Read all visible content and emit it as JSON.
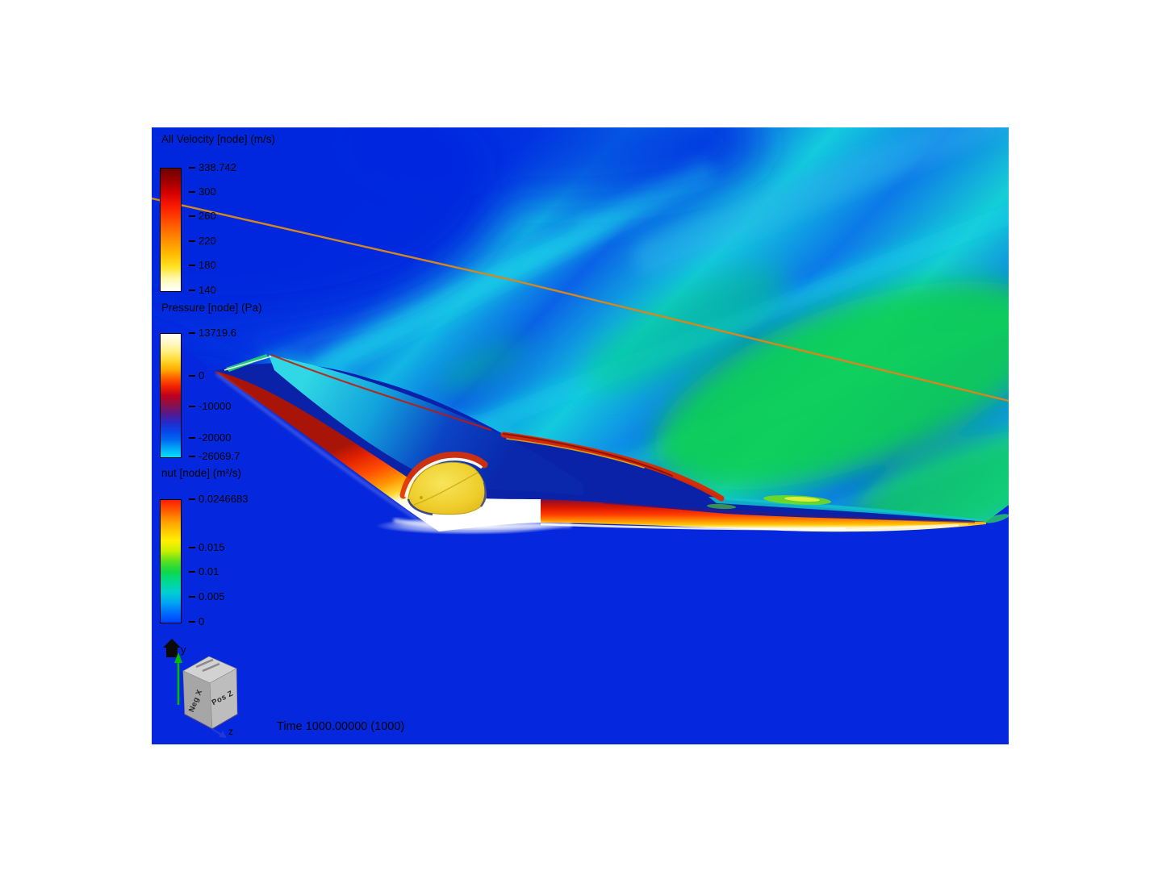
{
  "window": {
    "background": "#FFFFFF"
  },
  "viewport": {
    "background_color": "#0527DD",
    "time_label": "Time 1000.00000 (1000)",
    "colors": {
      "deep_blue": "#0527DD",
      "wake_cyan": "#14CCE0",
      "wake_green": "#0ECF5E",
      "streamline_orange": "#D4871F",
      "wing_hot_red": "#E02000",
      "canopy_yellow": "#EFCF2E"
    }
  },
  "legends": [
    {
      "id": "velocity",
      "title": "All Velocity [node] (m/s)",
      "max": 338.742,
      "min": 140,
      "ticks": [
        "338.742",
        "300",
        "260",
        "220",
        "180",
        "140"
      ],
      "colors": [
        "#6E0000",
        "#9E0000",
        "#D40000",
        "#F81800",
        "#FF4000",
        "#FF6C00",
        "#FF9400",
        "#FFBC00",
        "#FFE220",
        "#FFF9B0",
        "#FFFFFF"
      ]
    },
    {
      "id": "pressure",
      "title": "Pressure [node] (Pa)",
      "max": 13719.6,
      "min": -26069.7,
      "ticks": [
        "13719.6",
        "0",
        "-10000",
        "-20000",
        "-26069.7"
      ],
      "colors": [
        "#FFFFF4",
        "#FFF8C8",
        "#FFF080",
        "#FFD830",
        "#FFB000",
        "#FF6000",
        "#F02000",
        "#C00020",
        "#8C1048",
        "#5A1888",
        "#2828C8",
        "#0844E8",
        "#0068F0",
        "#00A8F8",
        "#00E0FF"
      ]
    },
    {
      "id": "nut",
      "title": "nut [node] (m²/s)",
      "max": 0.0246683,
      "min": 0,
      "ticks": [
        "0.0246683",
        "0.015",
        "0.01",
        "0.005",
        "0"
      ],
      "colors": [
        "#FF1C00",
        "#FF5800",
        "#FF9800",
        "#FFC800",
        "#FFF000",
        "#C8F000",
        "#58E020",
        "#10D848",
        "#00D890",
        "#00D0D0",
        "#00A8F0",
        "#0070FF",
        "#0040FF"
      ]
    }
  ],
  "orientation_cube": {
    "y_axis_label": "y",
    "z_axis_label": "z",
    "left_face_label": "Neg X",
    "right_face_label": "Pos Z",
    "y_axis_color": "#00BC00",
    "z_axis_color": "#2238D8"
  }
}
